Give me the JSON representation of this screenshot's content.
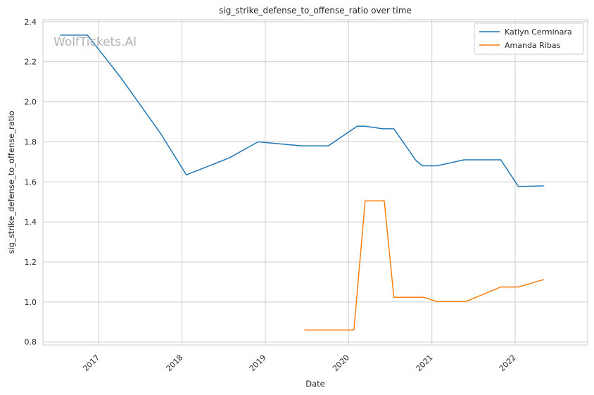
{
  "chart_data": {
    "type": "line",
    "title": "sig_strike_defense_to_offense_ratio over time",
    "xlabel": "Date",
    "ylabel": "sig_strike_defense_to_offense_ratio",
    "x_axis_type": "date",
    "xlim": [
      "2016-05-01",
      "2022-11-15"
    ],
    "ylim": [
      0.785,
      2.41
    ],
    "x_ticks": [
      {
        "date": "2017-01-01",
        "label": "2017"
      },
      {
        "date": "2018-01-01",
        "label": "2018"
      },
      {
        "date": "2019-01-01",
        "label": "2019"
      },
      {
        "date": "2020-01-01",
        "label": "2020"
      },
      {
        "date": "2021-01-01",
        "label": "2021"
      },
      {
        "date": "2022-01-01",
        "label": "2022"
      }
    ],
    "y_ticks": [
      {
        "value": 0.8,
        "label": "0.8"
      },
      {
        "value": 1.0,
        "label": "1.0"
      },
      {
        "value": 1.2,
        "label": "1.2"
      },
      {
        "value": 1.4,
        "label": "1.4"
      },
      {
        "value": 1.6,
        "label": "1.6"
      },
      {
        "value": 1.8,
        "label": "1.8"
      },
      {
        "value": 2.0,
        "label": "2.0"
      },
      {
        "value": 2.2,
        "label": "2.2"
      },
      {
        "value": 2.4,
        "label": "2.4"
      }
    ],
    "grid": true,
    "legend_position": "top-right",
    "watermark": "WolfTickets.AI",
    "series": [
      {
        "name": "Katlyn Cerminara",
        "color": "#1f77b4",
        "points": [
          {
            "x": "2016-07-15",
            "y": 2.333
          },
          {
            "x": "2016-11-12",
            "y": 2.333
          },
          {
            "x": "2017-04-08",
            "y": 2.12
          },
          {
            "x": "2017-09-30",
            "y": 1.84
          },
          {
            "x": "2018-01-20",
            "y": 1.635
          },
          {
            "x": "2018-07-28",
            "y": 1.72
          },
          {
            "x": "2018-12-01",
            "y": 1.8
          },
          {
            "x": "2019-06-08",
            "y": 1.78
          },
          {
            "x": "2019-10-05",
            "y": 1.78
          },
          {
            "x": "2020-02-08",
            "y": 1.878
          },
          {
            "x": "2020-03-14",
            "y": 1.878
          },
          {
            "x": "2020-05-30",
            "y": 1.865
          },
          {
            "x": "2020-07-18",
            "y": 1.865
          },
          {
            "x": "2020-10-24",
            "y": 1.705
          },
          {
            "x": "2020-11-21",
            "y": 1.68
          },
          {
            "x": "2021-01-23",
            "y": 1.68
          },
          {
            "x": "2021-05-22",
            "y": 1.71
          },
          {
            "x": "2021-10-30",
            "y": 1.71
          },
          {
            "x": "2022-01-15",
            "y": 1.577
          },
          {
            "x": "2022-05-07",
            "y": 1.58
          }
        ]
      },
      {
        "name": "Amanda Ribas",
        "color": "#ff7f0e",
        "points": [
          {
            "x": "2019-06-22",
            "y": 0.86
          },
          {
            "x": "2020-01-25",
            "y": 0.86
          },
          {
            "x": "2020-03-14",
            "y": 1.505
          },
          {
            "x": "2020-06-06",
            "y": 1.505
          },
          {
            "x": "2020-07-18",
            "y": 1.023
          },
          {
            "x": "2020-11-28",
            "y": 1.023
          },
          {
            "x": "2021-01-23",
            "y": 1.002
          },
          {
            "x": "2021-05-29",
            "y": 1.002
          },
          {
            "x": "2021-10-30",
            "y": 1.075
          },
          {
            "x": "2022-01-15",
            "y": 1.075
          },
          {
            "x": "2022-05-07",
            "y": 1.112
          }
        ]
      }
    ]
  }
}
